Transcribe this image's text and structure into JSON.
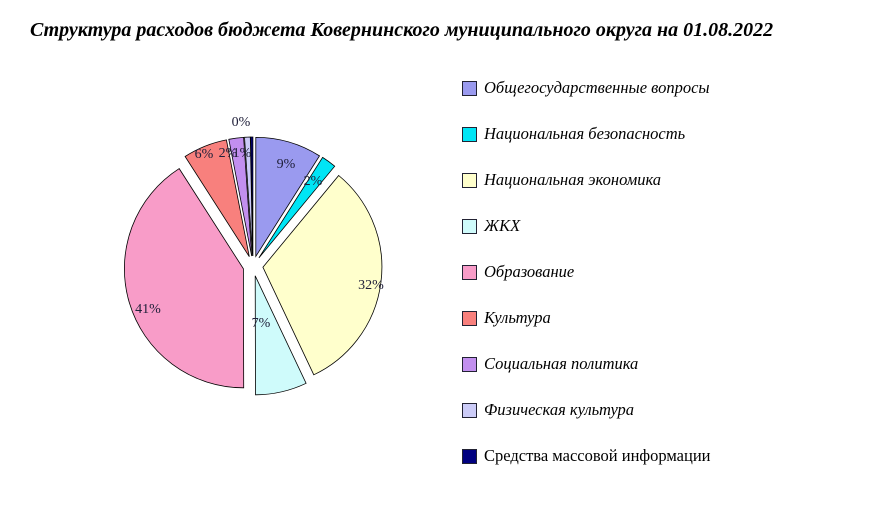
{
  "chart_data": {
    "type": "pie",
    "title": "Структура расходов бюджета Ковернинского муниципального округа на 01.08.2022",
    "legend_position": "right",
    "start_angle_deg": 0,
    "direction": "clockwise",
    "exploded": true,
    "units": "percent",
    "slices": [
      {
        "label": "Общегосударственные вопросы",
        "value": 9,
        "pct_label": "9%",
        "color": "#9A9AEF"
      },
      {
        "label": "Национальная безопасность",
        "value": 2,
        "pct_label": "2%",
        "color": "#00E5F5"
      },
      {
        "label": "Национальная экономика",
        "value": 32,
        "pct_label": "32%",
        "color": "#FFFFCC"
      },
      {
        "label": "ЖКХ",
        "value": 7,
        "pct_label": "7%",
        "color": "#CFFBFB"
      },
      {
        "label": "Образование",
        "value": 41,
        "pct_label": "41%",
        "color": "#F89CC8"
      },
      {
        "label": "Культура",
        "value": 6,
        "pct_label": "6%",
        "color": "#F8807D"
      },
      {
        "label": "Социальная политика",
        "value": 2,
        "pct_label": "2%",
        "color": "#C28FEF"
      },
      {
        "label": "Физическая культура",
        "value": 1,
        "pct_label": "1%",
        "color": "#CCCCF8"
      },
      {
        "label": "Средства массовой информации",
        "value": 0,
        "pct_label": "0%",
        "color": "#000080"
      }
    ]
  }
}
